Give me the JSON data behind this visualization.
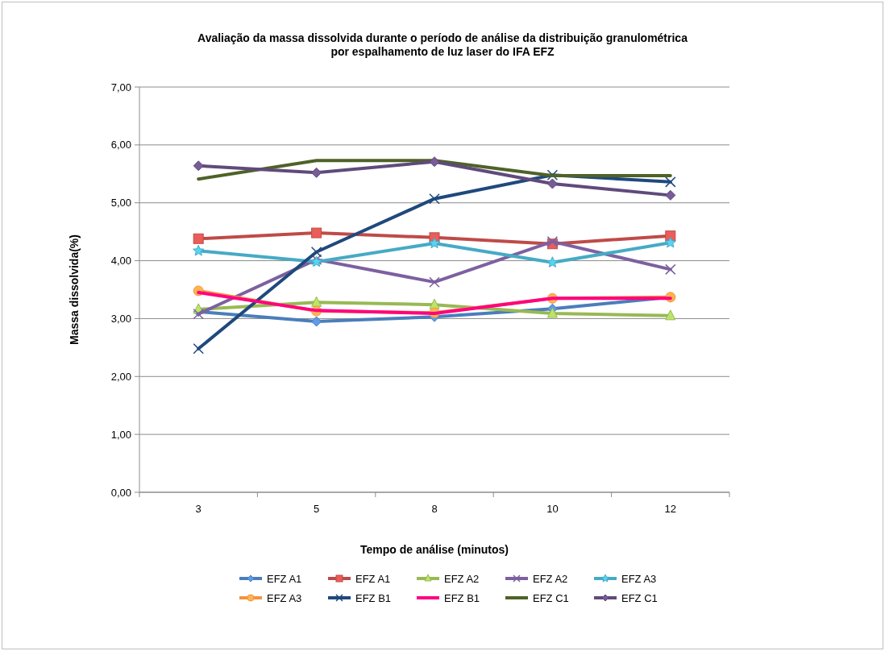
{
  "chart_data": {
    "type": "line",
    "title": "Avaliação da massa dissolvida durante o período de análise da distribuição granulométrica por espalhamento de luz laser do IFA EFZ",
    "xlabel": "Tempo de análise (minutos)",
    "ylabel": "Massa dissolvida(%)",
    "categories": [
      "3",
      "5",
      "8",
      "10",
      "12"
    ],
    "ylim": [
      0,
      7
    ],
    "yticks": [
      {
        "value": 0,
        "label": "0,00"
      },
      {
        "value": 1,
        "label": "1,00"
      },
      {
        "value": 2,
        "label": "2,00"
      },
      {
        "value": 3,
        "label": "3,00"
      },
      {
        "value": 4,
        "label": "4,00"
      },
      {
        "value": 5,
        "label": "5,00"
      },
      {
        "value": 6,
        "label": "6,00"
      },
      {
        "value": 7,
        "label": "7,00"
      }
    ],
    "grid": "y",
    "legend": "bottom",
    "series": [
      {
        "name": "EFZ A1",
        "color": "#4a7ebb",
        "marker": "diamond",
        "values": [
          3.12,
          2.95,
          3.03,
          3.17,
          3.37
        ]
      },
      {
        "name": "EFZ A1",
        "color": "#be4b48",
        "marker": "square",
        "values": [
          4.38,
          4.48,
          4.4,
          4.29,
          4.43
        ]
      },
      {
        "name": "EFZ A2",
        "color": "#98b954",
        "marker": "triangle",
        "values": [
          3.16,
          3.28,
          3.24,
          3.09,
          3.05
        ]
      },
      {
        "name": "EFZ A2",
        "color": "#7d60a0",
        "marker": "cross",
        "values": [
          3.08,
          4.02,
          3.63,
          4.33,
          3.85
        ]
      },
      {
        "name": "EFZ A3",
        "color": "#46aac5",
        "marker": "star",
        "values": [
          4.17,
          3.98,
          4.3,
          3.97,
          4.31
        ]
      },
      {
        "name": "EFZ A3",
        "color": "#f69240",
        "marker": "circle",
        "values": [
          3.48,
          3.13,
          3.1,
          3.35,
          3.37
        ]
      },
      {
        "name": "EFZ B1",
        "color": "#1f497d",
        "marker": "cross",
        "values": [
          2.48,
          4.15,
          5.07,
          5.48,
          5.36
        ]
      },
      {
        "name": "EFZ B1",
        "color": "#ff0080",
        "marker": "none",
        "values": [
          3.45,
          3.14,
          3.09,
          3.35,
          3.35
        ]
      },
      {
        "name": "EFZ C1",
        "color": "#4f6228",
        "marker": "none",
        "values": [
          5.41,
          5.73,
          5.73,
          5.47,
          5.47
        ]
      },
      {
        "name": "EFZ C1",
        "color": "#604a7b",
        "marker": "diamond",
        "values": [
          5.64,
          5.52,
          5.71,
          5.33,
          5.13
        ]
      }
    ]
  }
}
